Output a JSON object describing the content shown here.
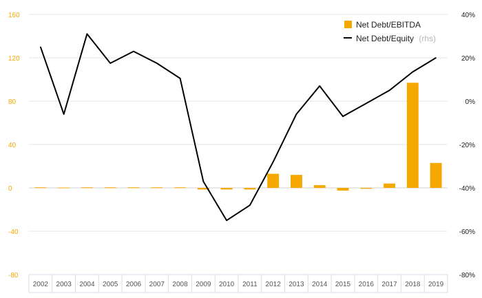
{
  "chart_data": {
    "type": "bar+line",
    "categories": [
      "2002",
      "2003",
      "2004",
      "2005",
      "2006",
      "2007",
      "2008",
      "2009",
      "2010",
      "2011",
      "2012",
      "2013",
      "2014",
      "2015",
      "2016",
      "2017",
      "2018",
      "2019"
    ],
    "series": [
      {
        "name": "Net Debt/EBITDA",
        "type": "bar",
        "axis": "left",
        "values": [
          0.5,
          0.3,
          0.5,
          0.5,
          0.5,
          0.5,
          0.5,
          -1.5,
          -1.5,
          -1.5,
          13,
          12,
          2.5,
          -2.5,
          -0.8,
          4,
          97,
          23
        ]
      },
      {
        "name": "Net Debt/Equity",
        "type": "line",
        "axis": "right",
        "values": [
          25,
          -6,
          31,
          17.5,
          23,
          17.5,
          10.5,
          -37,
          -55,
          -48,
          -28,
          -6,
          7,
          -7,
          -1,
          5,
          13.5,
          20
        ]
      }
    ],
    "left_axis": {
      "ylim": [
        -80,
        160
      ],
      "ticks": [
        -80,
        -40,
        0,
        40,
        80,
        120,
        160
      ],
      "tick_labels": [
        "-80",
        "-40",
        "0",
        "40",
        "80",
        "120",
        "160"
      ]
    },
    "right_axis": {
      "ylim": [
        -80,
        40
      ],
      "ticks": [
        -80,
        -60,
        -40,
        -20,
        0,
        20,
        40
      ],
      "tick_labels": [
        "-80%",
        "-60%",
        "-40%",
        "-20%",
        "0%",
        "20%",
        "40%"
      ]
    },
    "legend": {
      "position": "top-right",
      "items": [
        {
          "label": "Net Debt/EBITDA",
          "note": "",
          "kind": "bar"
        },
        {
          "label": "Net Debt/Equity",
          "note": "(rhs)",
          "kind": "line"
        }
      ]
    },
    "grid": true,
    "colors": {
      "bar": "#f5a800",
      "line": "#000000",
      "grid": "#e6e6e6",
      "axis_box": "#d9dde8"
    }
  }
}
